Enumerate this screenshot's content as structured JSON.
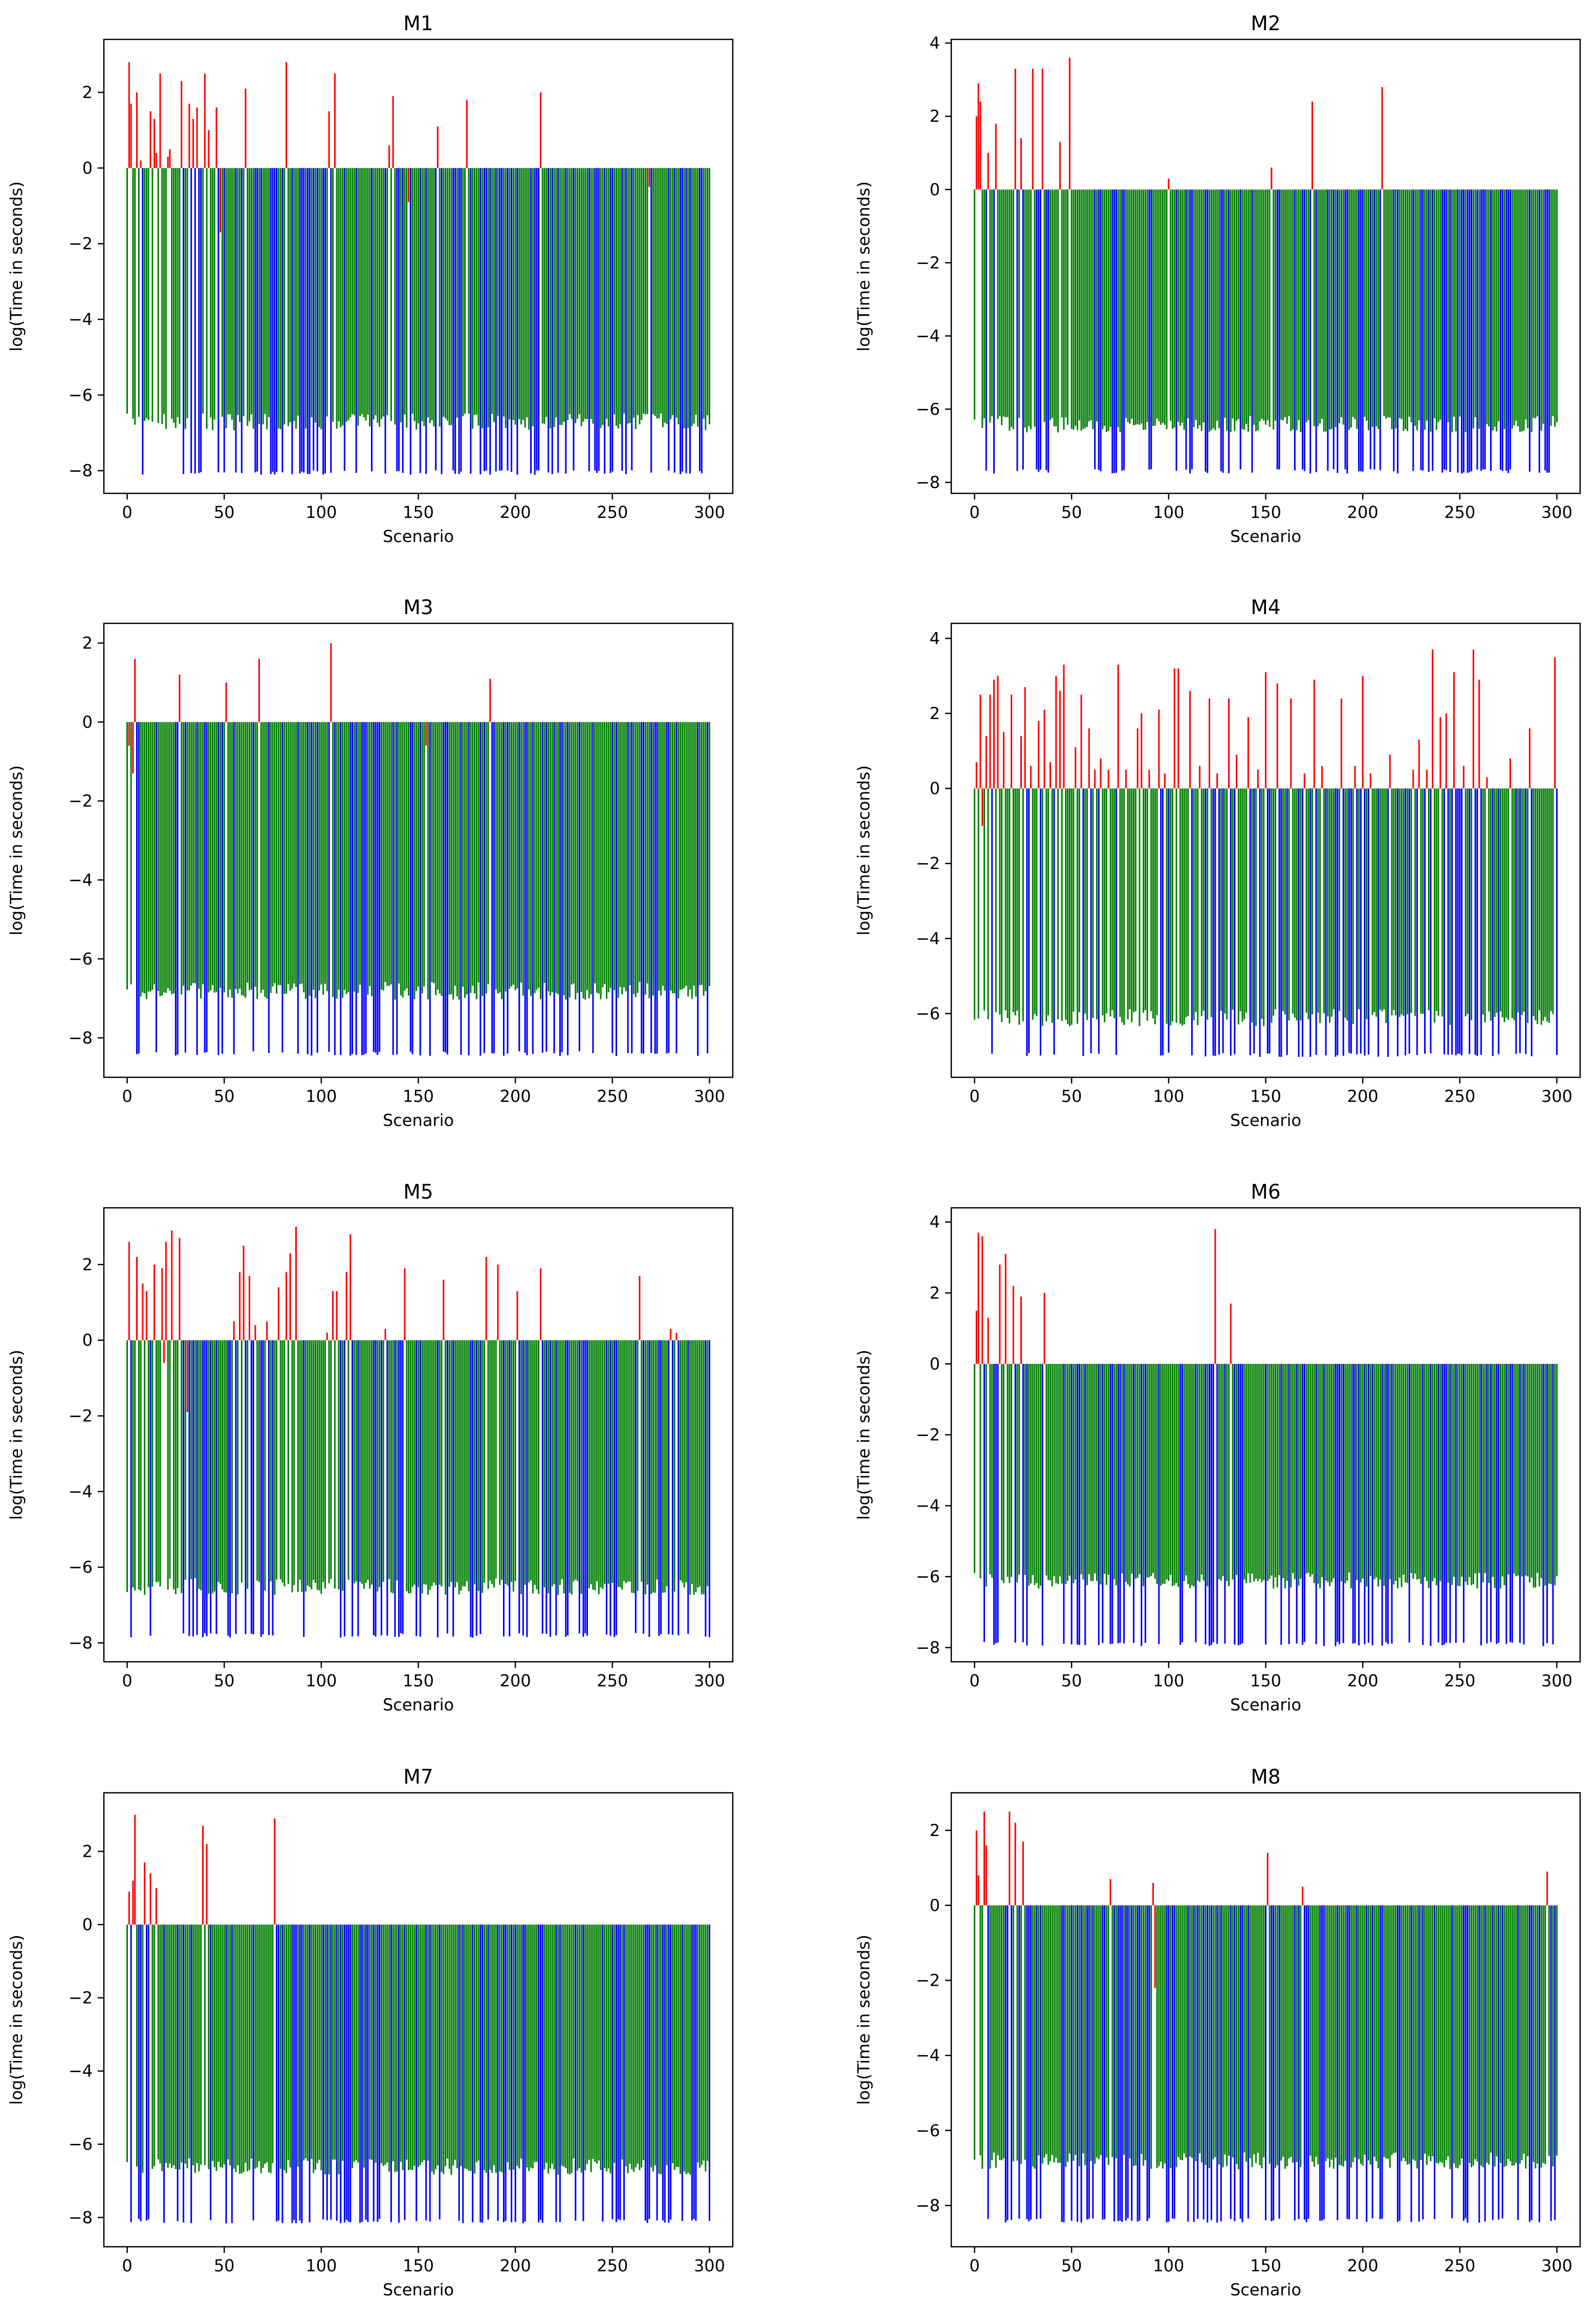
{
  "figure": {
    "rows": 4,
    "cols": 2
  },
  "chart_data": [
    {
      "id": "M1",
      "type": "bar",
      "title": "M1",
      "xlabel": "Scenario",
      "ylabel": "log(Time in seconds)",
      "xlim": [
        -12,
        312
      ],
      "ylim": [
        -8.6,
        3.4
      ],
      "xticks": [
        0,
        50,
        100,
        150,
        200,
        250,
        300
      ],
      "yticks": [
        -8,
        -6,
        -4,
        -2,
        0,
        2
      ],
      "base_green": -6.8,
      "base_blue": -8.05,
      "red_peaks": [
        [
          1,
          2.8
        ],
        [
          2,
          1.7
        ],
        [
          5,
          2.0
        ],
        [
          7,
          0.2
        ],
        [
          12,
          1.5
        ],
        [
          14,
          1.3
        ],
        [
          15,
          0.4
        ],
        [
          17,
          2.5
        ],
        [
          21,
          0.3
        ],
        [
          22,
          0.5
        ],
        [
          28,
          2.3
        ],
        [
          32,
          1.7
        ],
        [
          34,
          1.3
        ],
        [
          36,
          1.6
        ],
        [
          40,
          2.5
        ],
        [
          42,
          1.0
        ],
        [
          46,
          1.6
        ],
        [
          48,
          -1.7
        ],
        [
          61,
          2.1
        ],
        [
          82,
          2.8
        ],
        [
          104,
          1.5
        ],
        [
          107,
          2.5
        ],
        [
          135,
          0.6
        ],
        [
          137,
          1.9
        ],
        [
          145,
          -0.9
        ],
        [
          160,
          1.1
        ],
        [
          175,
          1.8
        ],
        [
          213,
          2.0
        ],
        [
          269,
          -0.5
        ]
      ]
    },
    {
      "id": "M2",
      "type": "bar",
      "title": "M2",
      "xlabel": "Scenario",
      "ylabel": "log(Time in seconds)",
      "xlim": [
        -12,
        312
      ],
      "ylim": [
        -8.3,
        4.1
      ],
      "xticks": [
        0,
        50,
        100,
        150,
        200,
        250,
        300
      ],
      "yticks": [
        -8,
        -6,
        -4,
        -2,
        0,
        2,
        4
      ],
      "base_green": -6.5,
      "base_blue": -7.7,
      "red_peaks": [
        [
          1,
          2.0
        ],
        [
          2,
          2.9
        ],
        [
          3,
          2.4
        ],
        [
          7,
          1.0
        ],
        [
          11,
          1.8
        ],
        [
          21,
          3.3
        ],
        [
          24,
          1.4
        ],
        [
          30,
          3.3
        ],
        [
          35,
          3.3
        ],
        [
          44,
          1.3
        ],
        [
          49,
          3.6
        ],
        [
          100,
          0.3
        ],
        [
          153,
          0.6
        ],
        [
          174,
          2.4
        ],
        [
          210,
          2.8
        ]
      ]
    },
    {
      "id": "M3",
      "type": "bar",
      "title": "M3",
      "xlabel": "Scenario",
      "ylabel": "log(Time in seconds)",
      "xlim": [
        -12,
        312
      ],
      "ylim": [
        -9.0,
        2.5
      ],
      "xticks": [
        0,
        50,
        100,
        150,
        200,
        250,
        300
      ],
      "yticks": [
        -8,
        -6,
        -4,
        -2,
        0,
        2
      ],
      "base_green": -6.9,
      "base_blue": -8.4,
      "red_peaks": [
        [
          1,
          -0.6
        ],
        [
          3,
          -1.3
        ],
        [
          4,
          1.6
        ],
        [
          27,
          1.2
        ],
        [
          51,
          1.0
        ],
        [
          68,
          1.6
        ],
        [
          105,
          2.0
        ],
        [
          154,
          -0.6
        ],
        [
          187,
          1.1
        ]
      ]
    },
    {
      "id": "M4",
      "type": "bar",
      "title": "M4",
      "xlabel": "Scenario",
      "ylabel": "log(Time in seconds)",
      "xlim": [
        -12,
        312
      ],
      "ylim": [
        -7.7,
        4.4
      ],
      "xticks": [
        0,
        50,
        100,
        150,
        200,
        250,
        300
      ],
      "yticks": [
        -6,
        -4,
        -2,
        0,
        2,
        4
      ],
      "base_green": -6.2,
      "base_blue": -7.1,
      "red_peaks": [
        [
          1,
          0.7
        ],
        [
          3,
          2.5
        ],
        [
          4,
          -1.0
        ],
        [
          6,
          1.4
        ],
        [
          8,
          2.5
        ],
        [
          10,
          2.9
        ],
        [
          12,
          3.0
        ],
        [
          15,
          1.5
        ],
        [
          19,
          2.5
        ],
        [
          24,
          1.4
        ],
        [
          26,
          2.7
        ],
        [
          29,
          0.6
        ],
        [
          33,
          1.8
        ],
        [
          36,
          2.1
        ],
        [
          39,
          0.7
        ],
        [
          42,
          3.0
        ],
        [
          44,
          2.6
        ],
        [
          46,
          3.3
        ],
        [
          52,
          1.1
        ],
        [
          55,
          2.5
        ],
        [
          59,
          1.6
        ],
        [
          62,
          0.5
        ],
        [
          65,
          0.8
        ],
        [
          69,
          0.5
        ],
        [
          74,
          3.3
        ],
        [
          78,
          0.5
        ],
        [
          84,
          1.6
        ],
        [
          86,
          2.0
        ],
        [
          90,
          0.5
        ],
        [
          95,
          2.1
        ],
        [
          98,
          0.4
        ],
        [
          103,
          3.2
        ],
        [
          105,
          3.2
        ],
        [
          111,
          2.6
        ],
        [
          116,
          0.6
        ],
        [
          121,
          2.4
        ],
        [
          125,
          0.4
        ],
        [
          131,
          2.4
        ],
        [
          135,
          0.9
        ],
        [
          141,
          1.9
        ],
        [
          146,
          0.5
        ],
        [
          150,
          3.1
        ],
        [
          156,
          2.8
        ],
        [
          163,
          2.4
        ],
        [
          170,
          0.4
        ],
        [
          175,
          2.9
        ],
        [
          179,
          0.6
        ],
        [
          189,
          2.4
        ],
        [
          196,
          0.6
        ],
        [
          200,
          3.0
        ],
        [
          204,
          0.4
        ],
        [
          214,
          0.9
        ],
        [
          226,
          0.5
        ],
        [
          229,
          1.3
        ],
        [
          233,
          0.5
        ],
        [
          236,
          3.7
        ],
        [
          240,
          1.9
        ],
        [
          243,
          2.0
        ],
        [
          247,
          3.1
        ],
        [
          252,
          0.6
        ],
        [
          257,
          3.7
        ],
        [
          260,
          2.9
        ],
        [
          264,
          0.3
        ],
        [
          276,
          0.8
        ],
        [
          286,
          1.6
        ],
        [
          299,
          3.5
        ]
      ]
    },
    {
      "id": "M5",
      "type": "bar",
      "title": "M5",
      "xlabel": "Scenario",
      "ylabel": "log(Time in seconds)",
      "xlim": [
        -12,
        312
      ],
      "ylim": [
        -8.5,
        3.5
      ],
      "xticks": [
        0,
        50,
        100,
        150,
        200,
        250,
        300
      ],
      "yticks": [
        -8,
        -6,
        -4,
        -2,
        0,
        2
      ],
      "base_green": -6.6,
      "base_blue": -7.8,
      "red_peaks": [
        [
          1,
          2.6
        ],
        [
          5,
          2.2
        ],
        [
          8,
          1.5
        ],
        [
          10,
          1.3
        ],
        [
          14,
          2.0
        ],
        [
          18,
          1.9
        ],
        [
          19,
          -0.6
        ],
        [
          20,
          2.6
        ],
        [
          23,
          2.9
        ],
        [
          27,
          2.7
        ],
        [
          31,
          -1.9
        ],
        [
          55,
          0.5
        ],
        [
          58,
          1.8
        ],
        [
          60,
          2.5
        ],
        [
          63,
          1.7
        ],
        [
          66,
          0.4
        ],
        [
          72,
          0.5
        ],
        [
          78,
          1.4
        ],
        [
          82,
          1.8
        ],
        [
          84,
          2.3
        ],
        [
          87,
          3.0
        ],
        [
          103,
          0.2
        ],
        [
          106,
          1.3
        ],
        [
          108,
          1.3
        ],
        [
          113,
          1.8
        ],
        [
          115,
          2.8
        ],
        [
          133,
          0.3
        ],
        [
          143,
          1.9
        ],
        [
          163,
          1.6
        ],
        [
          185,
          2.2
        ],
        [
          191,
          2.0
        ],
        [
          201,
          1.3
        ],
        [
          213,
          1.9
        ],
        [
          264,
          1.7
        ],
        [
          280,
          0.3
        ],
        [
          283,
          0.2
        ]
      ]
    },
    {
      "id": "M6",
      "type": "bar",
      "title": "M6",
      "xlabel": "Scenario",
      "ylabel": "log(Time in seconds)",
      "xlim": [
        -12,
        312
      ],
      "ylim": [
        -8.4,
        4.4
      ],
      "xticks": [
        0,
        50,
        100,
        150,
        200,
        250,
        300
      ],
      "yticks": [
        -8,
        -6,
        -4,
        -2,
        0,
        2,
        4
      ],
      "base_green": -6.2,
      "base_blue": -7.9,
      "red_peaks": [
        [
          1,
          1.5
        ],
        [
          2,
          3.7
        ],
        [
          4,
          3.6
        ],
        [
          7,
          1.3
        ],
        [
          13,
          2.8
        ],
        [
          16,
          3.1
        ],
        [
          20,
          2.2
        ],
        [
          24,
          1.9
        ],
        [
          36,
          2.0
        ],
        [
          124,
          3.8
        ],
        [
          132,
          1.7
        ]
      ]
    },
    {
      "id": "M7",
      "type": "bar",
      "title": "M7",
      "xlabel": "Scenario",
      "ylabel": "log(Time in seconds)",
      "xlim": [
        -12,
        312
      ],
      "ylim": [
        -8.8,
        3.6
      ],
      "xticks": [
        0,
        50,
        100,
        150,
        200,
        250,
        300
      ],
      "yticks": [
        -8,
        -6,
        -4,
        -2,
        0,
        2
      ],
      "base_green": -6.7,
      "base_blue": -8.1,
      "red_peaks": [
        [
          1,
          0.9
        ],
        [
          3,
          1.2
        ],
        [
          4,
          3.0
        ],
        [
          9,
          1.7
        ],
        [
          12,
          1.4
        ],
        [
          15,
          1.0
        ],
        [
          39,
          2.7
        ],
        [
          41,
          2.2
        ],
        [
          76,
          2.9
        ]
      ]
    },
    {
      "id": "M8",
      "type": "bar",
      "title": "M8",
      "xlabel": "Scenario",
      "ylabel": "log(Time in seconds)",
      "xlim": [
        -12,
        312
      ],
      "ylim": [
        -9.1,
        3.0
      ],
      "xticks": [
        0,
        50,
        100,
        150,
        200,
        250,
        300
      ],
      "yticks": [
        -8,
        -6,
        -4,
        -2,
        0,
        2
      ],
      "base_green": -6.9,
      "base_blue": -8.4,
      "red_peaks": [
        [
          1,
          2.0
        ],
        [
          2,
          0.8
        ],
        [
          5,
          2.5
        ],
        [
          6,
          1.6
        ],
        [
          18,
          2.5
        ],
        [
          21,
          2.2
        ],
        [
          25,
          1.7
        ],
        [
          70,
          0.7
        ],
        [
          92,
          0.6
        ],
        [
          93,
          -2.2
        ],
        [
          151,
          1.4
        ],
        [
          169,
          0.5
        ],
        [
          295,
          0.9
        ]
      ]
    }
  ]
}
